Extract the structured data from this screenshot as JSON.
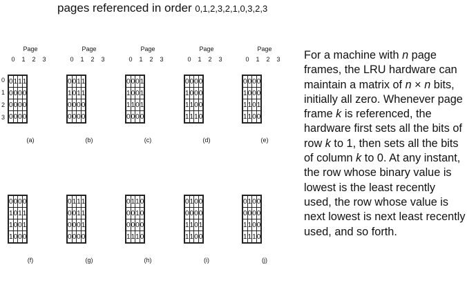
{
  "title": {
    "prefix": "pages referenced in order ",
    "order": "0,1,2,3,2,1,0,3,2,3"
  },
  "page_label": "Page",
  "col_labels": [
    "0",
    "1",
    "2",
    "3"
  ],
  "row_labels": [
    "0",
    "1",
    "2",
    "3"
  ],
  "matrices": [
    {
      "label": "(a)",
      "rows": [
        [
          "0",
          "1",
          "1",
          "1"
        ],
        [
          "0",
          "0",
          "0",
          "0"
        ],
        [
          "0",
          "0",
          "0",
          "0"
        ],
        [
          "0",
          "0",
          "0",
          "0"
        ]
      ]
    },
    {
      "label": "(b)",
      "rows": [
        [
          "0",
          "0",
          "1",
          "1"
        ],
        [
          "1",
          "0",
          "1",
          "1"
        ],
        [
          "0",
          "0",
          "0",
          "0"
        ],
        [
          "0",
          "0",
          "0",
          "0"
        ]
      ]
    },
    {
      "label": "(c)",
      "rows": [
        [
          "0",
          "0",
          "0",
          "1"
        ],
        [
          "1",
          "0",
          "0",
          "1"
        ],
        [
          "1",
          "1",
          "0",
          "1"
        ],
        [
          "0",
          "0",
          "0",
          "0"
        ]
      ]
    },
    {
      "label": "(d)",
      "rows": [
        [
          "0",
          "0",
          "0",
          "0"
        ],
        [
          "1",
          "0",
          "0",
          "0"
        ],
        [
          "1",
          "1",
          "0",
          "0"
        ],
        [
          "1",
          "1",
          "1",
          "0"
        ]
      ]
    },
    {
      "label": "(e)",
      "rows": [
        [
          "0",
          "0",
          "0",
          "0"
        ],
        [
          "1",
          "0",
          "0",
          "0"
        ],
        [
          "1",
          "1",
          "0",
          "1"
        ],
        [
          "1",
          "1",
          "0",
          "0"
        ]
      ]
    },
    {
      "label": "(f)",
      "rows": [
        [
          "0",
          "0",
          "0",
          "0"
        ],
        [
          "1",
          "0",
          "1",
          "1"
        ],
        [
          "1",
          "0",
          "0",
          "1"
        ],
        [
          "1",
          "0",
          "0",
          "0"
        ]
      ]
    },
    {
      "label": "(g)",
      "rows": [
        [
          "0",
          "1",
          "1",
          "1"
        ],
        [
          "0",
          "0",
          "1",
          "1"
        ],
        [
          "0",
          "0",
          "0",
          "1"
        ],
        [
          "0",
          "0",
          "0",
          "0"
        ]
      ]
    },
    {
      "label": "(h)",
      "rows": [
        [
          "0",
          "1",
          "1",
          "0"
        ],
        [
          "0",
          "0",
          "1",
          "0"
        ],
        [
          "0",
          "0",
          "0",
          "0"
        ],
        [
          "1",
          "1",
          "1",
          "0"
        ]
      ]
    },
    {
      "label": "(i)",
      "rows": [
        [
          "0",
          "1",
          "0",
          "0"
        ],
        [
          "0",
          "0",
          "0",
          "0"
        ],
        [
          "1",
          "1",
          "0",
          "1"
        ],
        [
          "1",
          "1",
          "0",
          "0"
        ]
      ]
    },
    {
      "label": "(j)",
      "rows": [
        [
          "0",
          "1",
          "0",
          "0"
        ],
        [
          "0",
          "0",
          "0",
          "0"
        ],
        [
          "1",
          "1",
          "0",
          "0"
        ],
        [
          "1",
          "1",
          "1",
          "0"
        ]
      ]
    }
  ],
  "description": {
    "p1": "For a machine with ",
    "n1": "n",
    "p2": " page frames, the LRU hardware can maintain a matrix of ",
    "n2": "n",
    "times": " × ",
    "n3": "n",
    "p3": " bits, initially all zero. Whenever page frame ",
    "k1": "k",
    "p4": " is referenced, the hardware first sets all the bits of row ",
    "k2": "k",
    "p5": " to 1, then sets all the bits of column ",
    "k3": "k",
    "p6": " to 0. At any instant, the row whose binary value is lowest is the least recently used, the row whose value is next lowest is next least recently used, and so forth."
  }
}
